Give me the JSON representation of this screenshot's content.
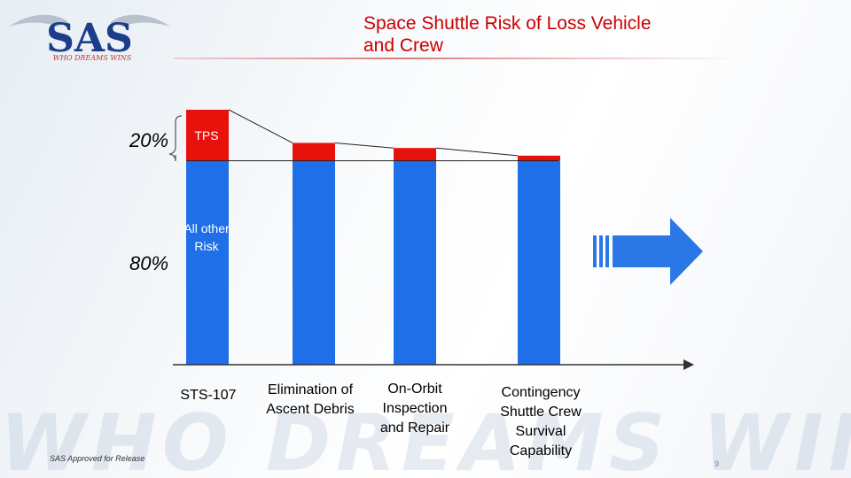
{
  "header": {
    "logo_text": "SAS",
    "logo_tagline": "WHO DREAMS WINS",
    "title": "Space Shuttle Risk of Loss Vehicle and Crew"
  },
  "watermark_text": "WHO DREAMS WINS™",
  "footer": {
    "left_text": "SAS Approved for Release",
    "page_number": "9"
  },
  "colors": {
    "bar_blue": "#1f6fe8",
    "tps_red": "#e8120c",
    "title_red": "#cc0000",
    "arrow_blue": "#2a77e6"
  },
  "chart_data": {
    "type": "bar",
    "stacked": true,
    "categories": [
      "STS-107",
      "Elimination of Ascent Debris",
      "On-Orbit Inspection and Repair",
      "Contingency Shuttle Crew Survival Capability"
    ],
    "series": [
      {
        "name": "All other Risk",
        "values": [
          80,
          80,
          80,
          80
        ]
      },
      {
        "name": "TPS",
        "values": [
          20,
          7,
          5,
          2
        ]
      }
    ],
    "segment_labels": {
      "tps": "TPS",
      "other": "All other Risk"
    },
    "percent_labels": [
      "20%",
      "80%"
    ],
    "ylim": [
      0,
      100
    ],
    "arrow_icon": "right-arrow-icon"
  }
}
